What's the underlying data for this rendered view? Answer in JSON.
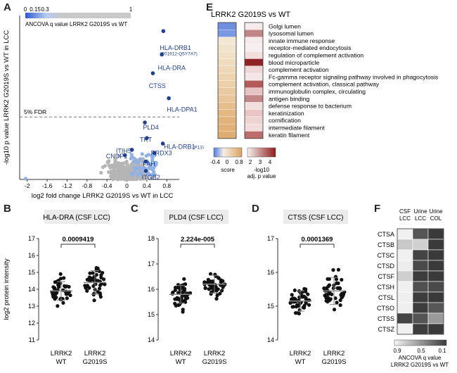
{
  "panels": {
    "A": {
      "letter": "A",
      "legend": {
        "ticks": [
          "0",
          "0.15",
          "0.3",
          "1"
        ],
        "label": "ANCOVA  q value LRRK2 G2019S vs WT"
      },
      "fdr_label": "5% FDR",
      "xlabel": "log2 fold change LRRK2 G2019S vs WT in LCC",
      "ylabel": "-log10 p value LRRK2 G2019S vs WT in LCC",
      "xticks": [
        "-2",
        "-1.6",
        "-1.2",
        "-0.8",
        "-0.4",
        "0",
        "0.4",
        "0.8"
      ],
      "labels": [
        {
          "text": "HLA-DRB1",
          "x": 0.66,
          "y": 8.3
        },
        {
          "text": "(P01912-Q5Y7A7)",
          "x": 0.66,
          "y": 7.95
        },
        {
          "text": "HLA-DRA",
          "x": 0.62,
          "y": 7.0
        },
        {
          "text": "CTSS",
          "x": 0.44,
          "y": 5.85
        },
        {
          "text": "HLA-DPA1",
          "x": 0.8,
          "y": 4.35
        },
        {
          "text": "PLD4",
          "x": 0.32,
          "y": 3.2
        },
        {
          "text": "TKT",
          "x": 0.26,
          "y": 2.4
        },
        {
          "text": "HLA-DRB1",
          "x": 0.74,
          "y": 1.95
        },
        {
          "text": "(P13760)",
          "x": 1.32,
          "y": 1.95
        },
        {
          "text": "ITIH5",
          "x": -0.22,
          "y": 1.7
        },
        {
          "text": "CNDP1",
          "x": -0.42,
          "y": 1.35
        },
        {
          "text": "PRDX3",
          "x": 0.48,
          "y": 1.55
        },
        {
          "text": "FAH",
          "x": 0.32,
          "y": 0.85
        },
        {
          "text": "ITGB2",
          "x": 0.3,
          "y": 0.0
        }
      ]
    },
    "E": {
      "letter": "E",
      "title": "LRRK2 G2019S vs WT",
      "terms": [
        "Golgi lumen",
        "lysosomal lumen",
        "innate immune response",
        "receptor-mediated endocytosis",
        "regulation of complement activation",
        "blood microparticle",
        "complement activation",
        "Fc-gamma receptor signaling pathway involved in phagocytosis",
        "complement activation, classical pathway",
        "immunoglobulin complex, circulating",
        "antigen binding",
        "defense response to bacterium",
        "keratinization",
        "cornification",
        "intermediate filament",
        "keratin filament"
      ],
      "score_colors": [
        "#6f90df",
        "#7a99e2",
        "#f3e6d2",
        "#f2e3cc",
        "#f1e0c6",
        "#efdcbf",
        "#eed8b8",
        "#edd4b1",
        "#ecd0aa",
        "#e9c9a0",
        "#e8c59a",
        "#e5be8e",
        "#e3b882",
        "#e2b47c",
        "#e0b077",
        "#dfad72"
      ],
      "p_colors": [
        "#f7eaea",
        "#c08686",
        "#f6eaea",
        "#f6eded",
        "#f3dede",
        "#8f2222",
        "#efd7d7",
        "#f5e7e7",
        "#b35a5a",
        "#e7c3c3",
        "#c28686",
        "#f3dede",
        "#e8c4c4",
        "#eed3d3",
        "#f2dcdc",
        "#be6d6d"
      ],
      "score_legend": {
        "ticks": [
          "-0.4",
          "0",
          "0.8"
        ],
        "label": "score"
      },
      "p_legend": {
        "ticks": [
          "2",
          "3",
          "4"
        ],
        "label1": "-log10",
        "label2": "adj. p value"
      }
    },
    "B": {
      "letter": "B",
      "title": "HLA-DRA (CSF LCC)",
      "pval": "0.0009419",
      "ylabel": "log2 protein intensity",
      "yticks": [
        "11",
        "12",
        "13",
        "14",
        "15",
        "16",
        "17"
      ],
      "ylim": [
        11,
        17
      ],
      "groups": [
        [
          "LRRK2",
          "WT"
        ],
        [
          "LRRK2",
          "G2019S"
        ]
      ],
      "stats": [
        {
          "mean": 13.9,
          "sd": 0.55,
          "min": 12.9,
          "max": 14.9
        },
        {
          "mean": 14.4,
          "sd": 0.7,
          "min": 12.2,
          "max": 15.8
        }
      ]
    },
    "C": {
      "letter": "C",
      "title": "PLD4 (CSF LCC)",
      "pval": "2.224e-005",
      "yticks": [
        "14",
        "15",
        "16",
        "17",
        "18"
      ],
      "ylim": [
        14,
        18
      ],
      "groups": [
        [
          "LRRK2",
          "WT"
        ],
        [
          "LRRK2",
          "G2019S"
        ]
      ],
      "stats": [
        {
          "mean": 15.8,
          "sd": 0.35,
          "min": 14.7,
          "max": 16.5
        },
        {
          "mean": 16.2,
          "sd": 0.35,
          "min": 15.3,
          "max": 17.0
        }
      ]
    },
    "D": {
      "letter": "D",
      "title": "CTSS (CSF LCC)",
      "pval": "0.0001369",
      "yticks": [
        "14",
        "15",
        "16",
        "17"
      ],
      "ylim": [
        14,
        17
      ],
      "groups": [
        [
          "LRRK2",
          "WT"
        ],
        [
          "LRRK2",
          "G2019S"
        ]
      ],
      "stats": [
        {
          "mean": 15.15,
          "sd": 0.3,
          "min": 14.5,
          "max": 15.9
        },
        {
          "mean": 15.45,
          "sd": 0.4,
          "min": 14.7,
          "max": 16.4
        }
      ]
    },
    "F": {
      "letter": "F",
      "columns": [
        [
          "CSF",
          "LCC"
        ],
        [
          "Urine",
          "LCC"
        ],
        [
          "Urine",
          "COL"
        ]
      ],
      "rows": [
        "CTSA",
        "CTSB",
        "CTSC",
        "CTSD",
        "CTSF",
        "CTSH",
        "CTSL",
        "CTSO",
        "CTSS",
        "CTSZ"
      ],
      "cell_colors": [
        [
          "#f0f0f0",
          "#555555",
          "#3a3a3a"
        ],
        [
          "#c8c8c8",
          "#d0d0d0",
          "#3a3a3a"
        ],
        [
          "#f0f0f0",
          "#444444",
          "#3a3a3a"
        ],
        [
          "#ededed",
          "#4a4a4a",
          "#3a3a3a"
        ],
        [
          "#cfcfcf",
          "#3c3c3c",
          "#3a3a3a"
        ],
        [
          "#f0f0f0",
          "#505050",
          "#4a4a4a"
        ],
        [
          "#efefef",
          "#3c3c3c",
          "#3a3a3a"
        ],
        [
          "#efefef",
          "#3c3c3c",
          "#575757"
        ],
        [
          "#444444",
          "#545454",
          "#9a9a9a"
        ],
        [
          "#f0f0f0",
          "#3c3c3c",
          "#3a3a3a"
        ]
      ],
      "legend": {
        "ticks": [
          "0.9",
          "0.5",
          "0.1"
        ],
        "label1": "ANCOVA q value",
        "label2": "LRRK2 G2019S vs WT"
      }
    }
  }
}
